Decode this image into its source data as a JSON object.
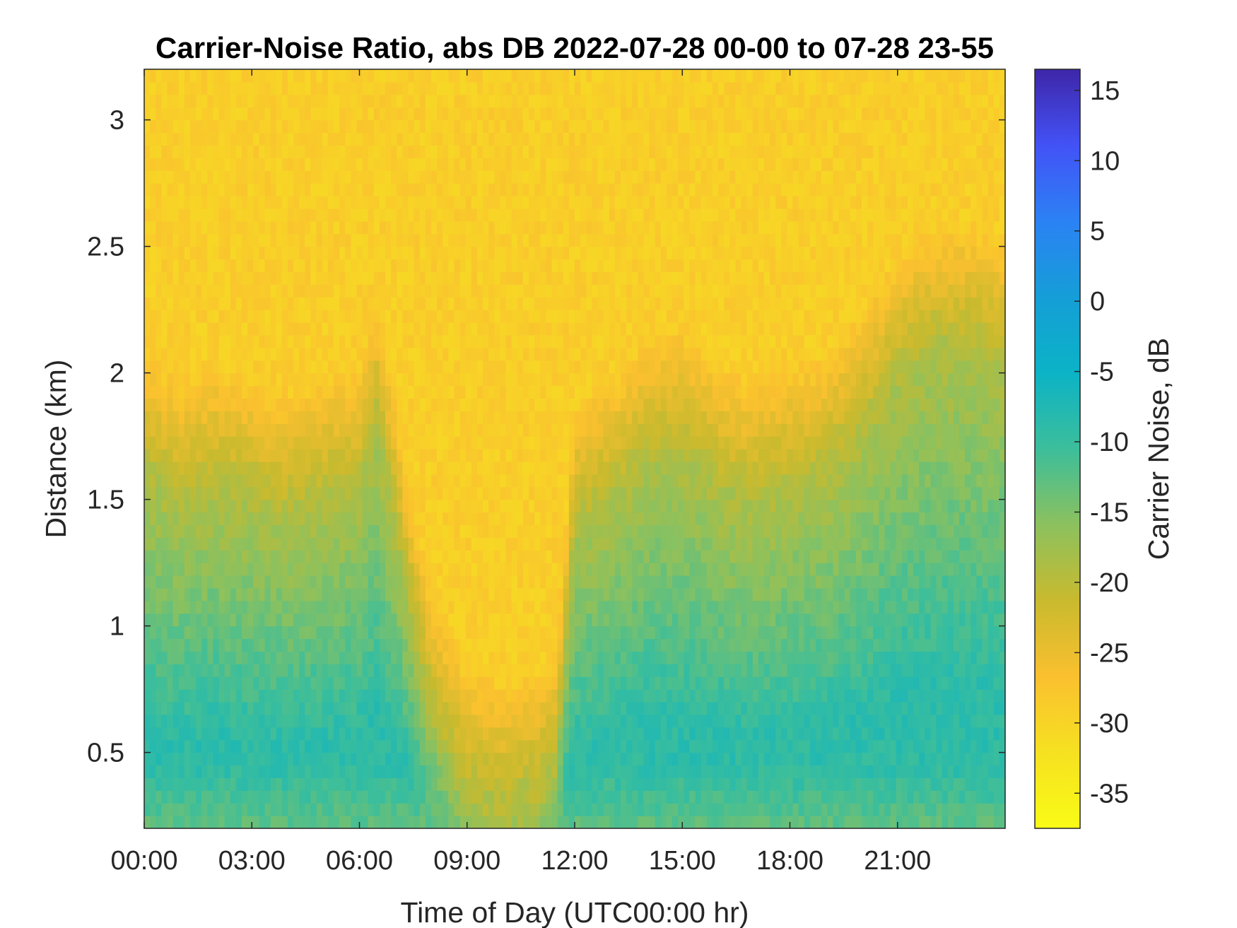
{
  "chart_data": {
    "type": "heatmap",
    "title": "Carrier-Noise Ratio, abs DB 2022-07-28 00-00 to 07-28 23-55",
    "xlabel": "Time of Day (UTC00:00 hr)",
    "ylabel": "Distance (km)",
    "colorbar_label": "Carrier Noise, dB",
    "x_ticks": [
      "00:00",
      "03:00",
      "06:00",
      "09:00",
      "12:00",
      "15:00",
      "18:00",
      "21:00"
    ],
    "x_tick_hours": [
      0,
      3,
      6,
      9,
      12,
      15,
      18,
      21
    ],
    "xlim_hours": [
      0,
      24
    ],
    "y_ticks": [
      "0.5",
      "1",
      "1.5",
      "2",
      "2.5",
      "3"
    ],
    "y_tick_values": [
      0.5,
      1,
      1.5,
      2,
      2.5,
      3
    ],
    "ylim": [
      0.2,
      3.2
    ],
    "colorbar_ticks": [
      "15",
      "10",
      "5",
      "0",
      "-5",
      "-10",
      "-15",
      "-20",
      "-25",
      "-30",
      "-35"
    ],
    "colorbar_tick_values": [
      15,
      10,
      5,
      0,
      -5,
      -10,
      -15,
      -20,
      -25,
      -30,
      -35
    ],
    "clim": [
      -37.5,
      16.5
    ],
    "colormap": "parula",
    "colormap_stops": [
      "#3e26a8",
      "#4352f6",
      "#2b82f4",
      "#159ed7",
      "#0bb3c6",
      "#3cbe9b",
      "#8cc15e",
      "#c9ba2e",
      "#fac02f",
      "#f6e121",
      "#f9fb15"
    ],
    "boundary_layer_top_km_by_hour": {
      "hours": [
        0,
        1,
        2,
        3,
        4,
        5,
        6,
        6.5,
        7,
        7.5,
        8,
        9,
        10,
        11,
        11.5,
        12,
        13,
        14,
        15,
        16,
        17,
        18,
        19,
        20,
        21,
        22,
        23,
        24
      ],
      "km": [
        1.6,
        1.5,
        1.55,
        1.5,
        1.45,
        1.5,
        1.55,
        1.8,
        1.4,
        1.0,
        0.65,
        0.35,
        0.3,
        0.35,
        0.45,
        1.4,
        1.5,
        1.65,
        1.7,
        1.55,
        1.5,
        1.55,
        1.6,
        1.75,
        2.0,
        2.1,
        2.1,
        2.05
      ]
    }
  }
}
